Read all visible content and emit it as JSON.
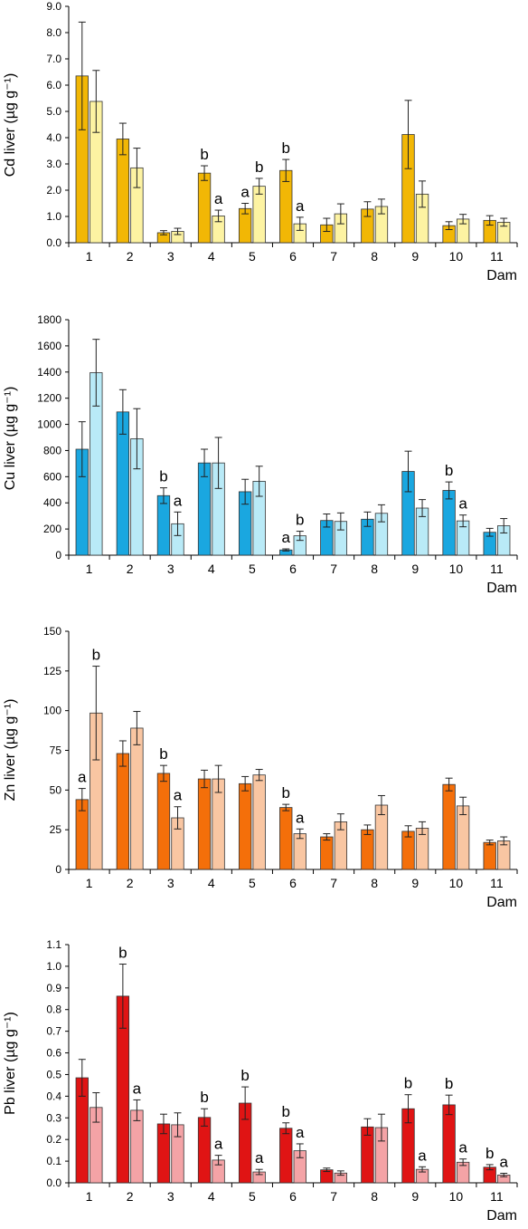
{
  "chart_data": [
    {
      "type": "bar",
      "ylabel": "Cd liver (µg g⁻¹)",
      "xlabel": "Dam",
      "ylim": [
        0,
        9
      ],
      "yticks": [
        "0.0",
        "1.0",
        "2.0",
        "3.0",
        "4.0",
        "5.0",
        "6.0",
        "7.0",
        "8.0",
        "9.0"
      ],
      "categories": [
        "1",
        "2",
        "3",
        "4",
        "5",
        "6",
        "7",
        "8",
        "9",
        "10",
        "11"
      ],
      "colors": [
        "#f2b705",
        "#fdf3a2"
      ],
      "series": [
        {
          "values": [
            6.35,
            3.95,
            0.38,
            2.65,
            1.3,
            2.75,
            0.68,
            1.28,
            4.12,
            0.65,
            0.85
          ],
          "errors": [
            2.05,
            0.6,
            0.08,
            0.28,
            0.2,
            0.42,
            0.25,
            0.28,
            1.3,
            0.15,
            0.18
          ],
          "letters": [
            "",
            "",
            "",
            "b",
            "a",
            "b",
            "",
            "",
            "",
            "",
            ""
          ]
        },
        {
          "values": [
            5.38,
            2.85,
            0.43,
            1.02,
            2.15,
            0.72,
            1.1,
            1.38,
            1.85,
            0.9,
            0.78
          ],
          "errors": [
            1.18,
            0.75,
            0.12,
            0.22,
            0.3,
            0.25,
            0.38,
            0.28,
            0.5,
            0.18,
            0.15
          ],
          "letters": [
            "",
            "",
            "",
            "a",
            "b",
            "a",
            "",
            "",
            "",
            "",
            ""
          ]
        }
      ]
    },
    {
      "type": "bar",
      "ylabel": "Cu liver (µg g⁻¹)",
      "xlabel": "Dam",
      "ylim": [
        0,
        1800
      ],
      "yticks": [
        "0",
        "200",
        "400",
        "600",
        "800",
        "1000",
        "1200",
        "1400",
        "1600",
        "1800"
      ],
      "categories": [
        "1",
        "2",
        "3",
        "4",
        "5",
        "6",
        "7",
        "8",
        "9",
        "10",
        "11"
      ],
      "colors": [
        "#1aa7e0",
        "#b9eaf7"
      ],
      "series": [
        {
          "values": [
            810,
            1095,
            455,
            705,
            485,
            40,
            265,
            275,
            640,
            495,
            175
          ],
          "errors": [
            210,
            170,
            60,
            105,
            95,
            8,
            50,
            55,
            155,
            65,
            30
          ],
          "letters": [
            "",
            "",
            "b",
            "",
            "",
            "a",
            "",
            "",
            "",
            "b",
            ""
          ]
        },
        {
          "values": [
            1395,
            890,
            240,
            705,
            565,
            148,
            258,
            320,
            360,
            262,
            225
          ],
          "errors": [
            255,
            230,
            90,
            195,
            115,
            35,
            65,
            65,
            65,
            45,
            55
          ],
          "letters": [
            "",
            "",
            "a",
            "",
            "",
            "b",
            "",
            "",
            "",
            "a",
            ""
          ]
        }
      ]
    },
    {
      "type": "bar",
      "ylabel": "Zn liver (µg g⁻¹)",
      "xlabel": "Dam",
      "ylim": [
        0,
        150
      ],
      "yticks": [
        "0",
        "25",
        "50",
        "75",
        "100",
        "125",
        "150"
      ],
      "categories": [
        "1",
        "2",
        "3",
        "4",
        "5",
        "6",
        "7",
        "8",
        "9",
        "10",
        "11"
      ],
      "colors": [
        "#f46f0a",
        "#f9c6a2"
      ],
      "series": [
        {
          "values": [
            44,
            73,
            60.5,
            57,
            54,
            39,
            20.5,
            25,
            24,
            53.5,
            17
          ],
          "errors": [
            7,
            8,
            5,
            5.5,
            4.5,
            2,
            2,
            3,
            3.5,
            4,
            1.5
          ],
          "letters": [
            "a",
            "",
            "b",
            "",
            "",
            "b",
            "",
            "",
            "",
            "",
            ""
          ]
        },
        {
          "values": [
            98.5,
            89,
            32.5,
            57,
            59.5,
            22.5,
            30,
            40.5,
            26,
            40,
            18
          ],
          "errors": [
            29.5,
            10.5,
            7,
            8.5,
            3.5,
            3,
            5,
            6,
            4,
            5.5,
            2.5
          ],
          "letters": [
            "b",
            "",
            "a",
            "",
            "",
            "a",
            "",
            "",
            "",
            "",
            ""
          ]
        }
      ]
    },
    {
      "type": "bar",
      "ylabel": "Pb liver (µg g⁻¹)",
      "xlabel": "Dam",
      "ylim": [
        0,
        1.1
      ],
      "yticks": [
        "0.0",
        "0.1",
        "0.2",
        "0.3",
        "0.4",
        "0.5",
        "0.6",
        "0.7",
        "0.8",
        "0.9",
        "1.0",
        "1.1"
      ],
      "categories": [
        "1",
        "2",
        "3",
        "4",
        "5",
        "6",
        "7",
        "8",
        "9",
        "10",
        "11"
      ],
      "colors": [
        "#e01414",
        "#f4a3a6"
      ],
      "series": [
        {
          "values": [
            0.485,
            0.862,
            0.272,
            0.302,
            0.368,
            0.252,
            0.06,
            0.258,
            0.342,
            0.36,
            0.072
          ],
          "errors": [
            0.085,
            0.148,
            0.045,
            0.04,
            0.075,
            0.025,
            0.008,
            0.038,
            0.065,
            0.045,
            0.012
          ],
          "letters": [
            "",
            "b",
            "",
            "b",
            "b",
            "b",
            "",
            "",
            "b",
            "b",
            "b"
          ]
        },
        {
          "values": [
            0.348,
            0.335,
            0.268,
            0.105,
            0.05,
            0.148,
            0.045,
            0.255,
            0.062,
            0.095,
            0.036
          ],
          "errors": [
            0.068,
            0.048,
            0.055,
            0.022,
            0.012,
            0.032,
            0.01,
            0.062,
            0.012,
            0.015,
            0.008
          ],
          "letters": [
            "",
            "a",
            "",
            "a",
            "a",
            "a",
            "",
            "",
            "a",
            "a",
            "a"
          ]
        }
      ]
    }
  ]
}
